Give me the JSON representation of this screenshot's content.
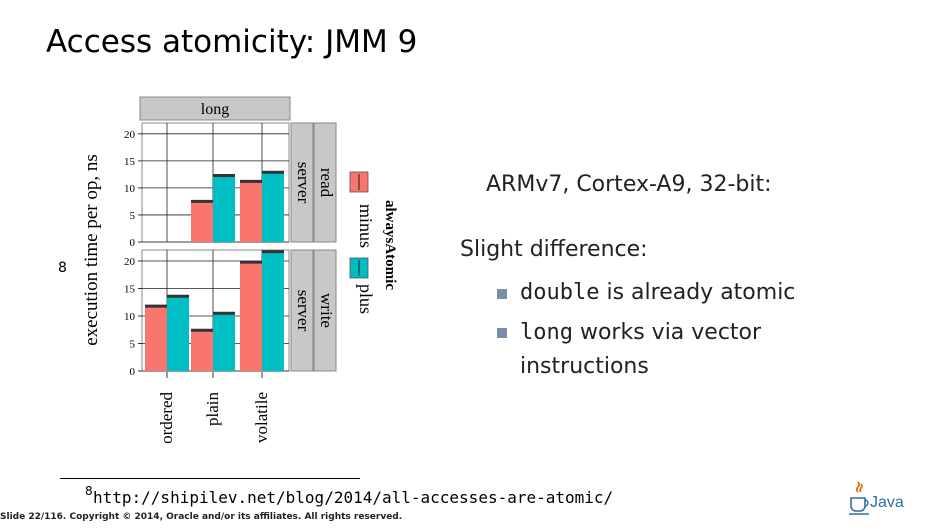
{
  "slide": {
    "title": "Access atomicity: JMM 9",
    "info_line1": "ARMv7, Cortex-A9, 32-bit:",
    "info_line2": "Slight difference:",
    "bullets": [
      {
        "code": "double",
        "text": " is already atomic"
      },
      {
        "code": "long",
        "text": " works via vector"
      },
      {
        "code": "",
        "text": "instructions"
      }
    ],
    "footnote_mark": "8",
    "footnote_ref": "8",
    "footnote_url": "http://shipilev.net/blog/2014/all-accesses-are-atomic/",
    "slide_info": "Slide 22/116. Copyright © 2014, Oracle and/or its affiliates. All rights reserved.",
    "logo_text": "Java",
    "accent_bullet_color": "#7a8fa6"
  },
  "chart_data": {
    "type": "bar",
    "facet_column": "long",
    "ylabel": "execution time per op, ns",
    "categories": [
      "ordered",
      "plain",
      "volatile"
    ],
    "yticks": [
      0,
      5,
      10,
      15,
      20
    ],
    "ylim": [
      0,
      22
    ],
    "legend": {
      "title": "alwaysAtomic",
      "entries": [
        "minus",
        "plus"
      ],
      "colors": [
        "#f8766d",
        "#00bfc4"
      ]
    },
    "panels": [
      {
        "row_labels": [
          "read",
          "server"
        ],
        "series": [
          {
            "name": "minus",
            "values": [
              null,
              7.5,
              11.2
            ]
          },
          {
            "name": "plus",
            "values": [
              null,
              12.3,
              12.9
            ]
          }
        ]
      },
      {
        "row_labels": [
          "write",
          "server"
        ],
        "series": [
          {
            "name": "minus",
            "values": [
              11.8,
              7.4,
              19.8
            ]
          },
          {
            "name": "plus",
            "values": [
              13.6,
              10.5,
              21.7
            ]
          }
        ]
      }
    ]
  }
}
